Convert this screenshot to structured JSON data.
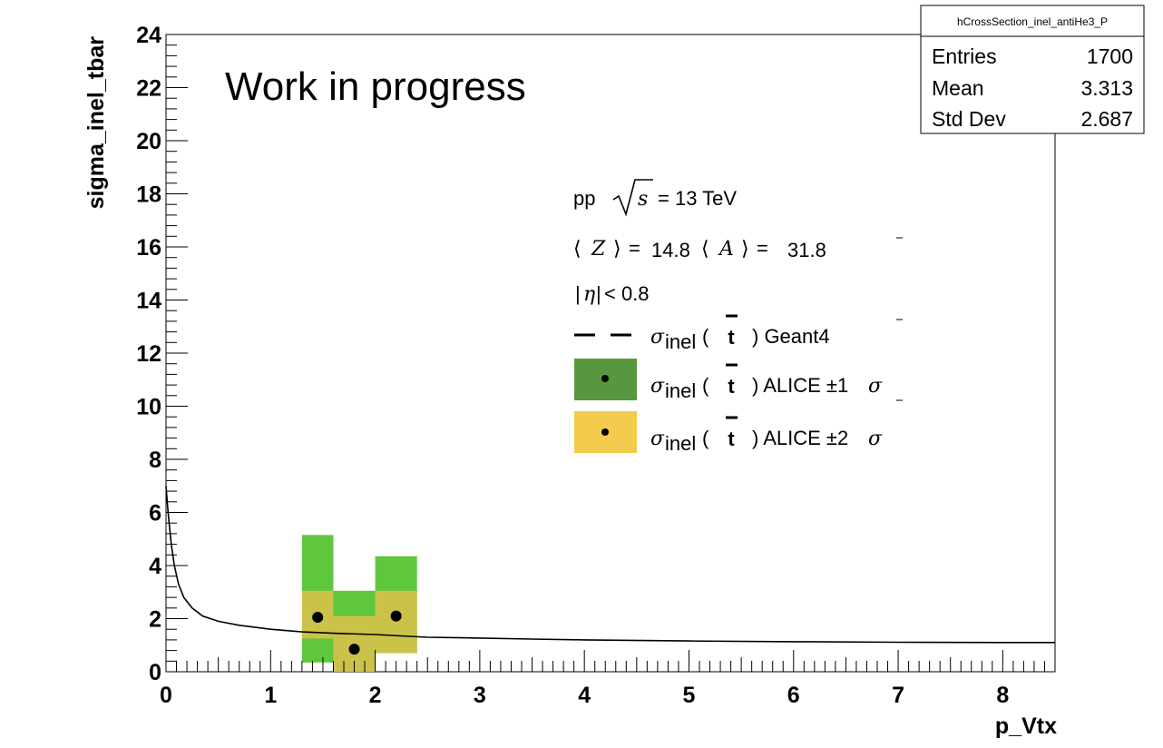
{
  "chart_data": {
    "type": "bar",
    "xlabel": "p_Vtx",
    "ylabel": "sigma_inel_tbar",
    "xlim": [
      0,
      8.5
    ],
    "ylim": [
      0,
      24
    ],
    "x_ticks": [
      "0",
      "1",
      "2",
      "3",
      "4",
      "5",
      "6",
      "7",
      "8"
    ],
    "y_ticks": [
      "0",
      "2",
      "4",
      "6",
      "8",
      "10",
      "12",
      "14",
      "16",
      "18",
      "20",
      "22",
      "24"
    ],
    "grid": false,
    "annotation": "Work in progress",
    "geant4_curve": {
      "x": [
        0.0,
        0.02,
        0.05,
        0.08,
        0.12,
        0.17,
        0.25,
        0.35,
        0.5,
        0.7,
        1.0,
        1.3,
        1.6,
        2.0,
        2.5,
        3.0,
        3.5,
        4.0,
        5.0,
        6.0,
        7.0,
        8.0,
        8.5
      ],
      "y": [
        7.0,
        6.0,
        4.8,
        4.0,
        3.3,
        2.8,
        2.4,
        2.1,
        1.9,
        1.75,
        1.6,
        1.5,
        1.45,
        1.4,
        1.3,
        1.27,
        1.23,
        1.2,
        1.16,
        1.13,
        1.11,
        1.1,
        1.1
      ]
    },
    "alice_points": [
      {
        "x": 1.45,
        "y": 2.05,
        "x_low": 1.3,
        "x_high": 1.6,
        "sigma1": [
          1.25,
          3.05
        ],
        "sigma2": [
          0.35,
          5.15
        ]
      },
      {
        "x": 1.8,
        "y": 0.85,
        "x_low": 1.6,
        "x_high": 2.0,
        "sigma1": [
          0.0,
          2.1
        ],
        "sigma2": [
          0.0,
          3.05
        ]
      },
      {
        "x": 2.2,
        "y": 2.1,
        "x_low": 2.0,
        "x_high": 2.4,
        "sigma1": [
          0.7,
          3.05
        ],
        "sigma2": [
          0.7,
          4.35
        ]
      }
    ],
    "colors": {
      "sigma1": "#58963f",
      "sigma2": "#f3cb4c",
      "fill_band1": "#cbc24a",
      "fill_band2": "#5ec73c",
      "curve": "#000000"
    }
  },
  "stats_box": {
    "title": "hCrossSection_inel_antiHe3_P",
    "rows": [
      {
        "label": "Entries",
        "value": "1700"
      },
      {
        "label": "Mean",
        "value": "3.313"
      },
      {
        "label": "Std Dev",
        "value": "2.687"
      }
    ]
  },
  "legend": {
    "header_pp": "pp",
    "header_s": "s",
    "header_energy": "= 13 TeV",
    "z_label": "Z",
    "z_eq": "=",
    "z_value": "14.8",
    "a_label": "A",
    "a_eq": "=",
    "a_value": "31.8",
    "eta_label": "η",
    "eta_value": "< 0.8",
    "sigma": "σ",
    "sigma_sub": "inel",
    "particle": "t",
    "geant4_label": ") Geant4",
    "alice1_label": ") ALICE ±1",
    "alice2_label": ") ALICE ±2",
    "sigma_suffix": "σ"
  }
}
